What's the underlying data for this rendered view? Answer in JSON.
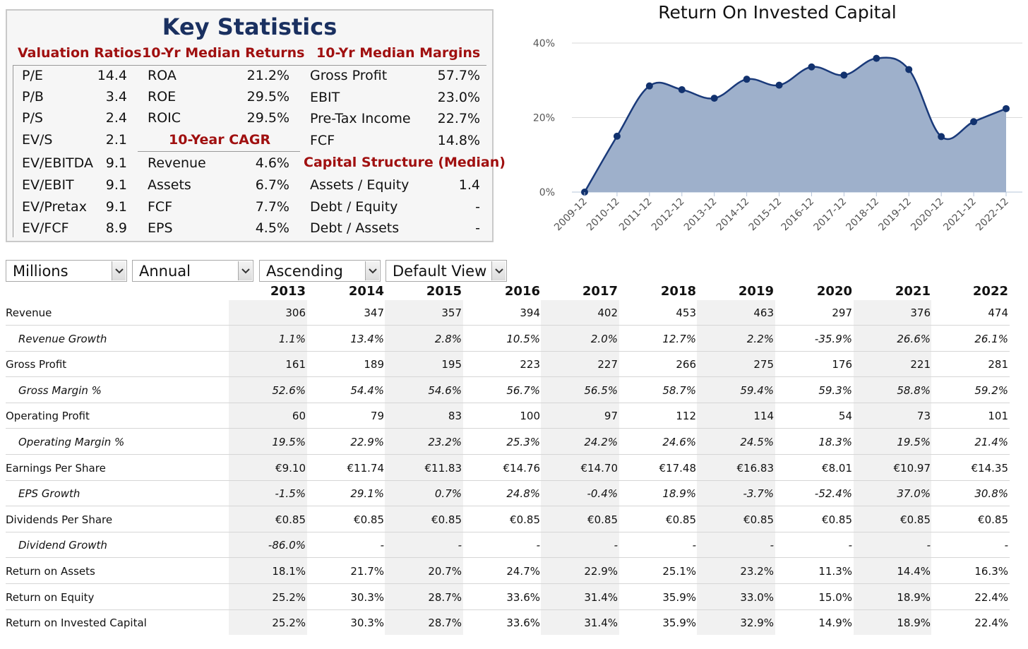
{
  "key_stats": {
    "title": "Key Statistics",
    "valuation": {
      "header": "Valuation Ratios",
      "rows": [
        {
          "label": "P/E",
          "value": "14.4"
        },
        {
          "label": "P/B",
          "value": "3.4"
        },
        {
          "label": "P/S",
          "value": "2.4"
        },
        {
          "label": "EV/S",
          "value": "2.1"
        },
        {
          "label": "EV/EBITDA",
          "value": "9.1"
        },
        {
          "label": "EV/EBIT",
          "value": "9.1"
        },
        {
          "label": "EV/Pretax",
          "value": "9.1"
        },
        {
          "label": "EV/FCF",
          "value": "8.9"
        }
      ]
    },
    "returns": {
      "header": "10-Yr Median Returns",
      "rows": [
        {
          "label": "ROA",
          "value": "21.2%"
        },
        {
          "label": "ROE",
          "value": "29.5%"
        },
        {
          "label": "ROIC",
          "value": "29.5%"
        }
      ]
    },
    "cagr": {
      "header": "10-Year CAGR",
      "rows": [
        {
          "label": "Revenue",
          "value": "4.6%"
        },
        {
          "label": "Assets",
          "value": "6.7%"
        },
        {
          "label": "FCF",
          "value": "7.7%"
        },
        {
          "label": "EPS",
          "value": "4.5%"
        }
      ]
    },
    "margins": {
      "header": "10-Yr Median Margins",
      "rows": [
        {
          "label": "Gross Profit",
          "value": "57.7%"
        },
        {
          "label": "EBIT",
          "value": "23.0%"
        },
        {
          "label": "Pre-Tax Income",
          "value": "22.7%"
        },
        {
          "label": "FCF",
          "value": "14.8%"
        }
      ]
    },
    "capital": {
      "header": "Capital Structure (Median)",
      "rows": [
        {
          "label": "Assets / Equity",
          "value": "1.4"
        },
        {
          "label": "Debt / Equity",
          "value": "-"
        },
        {
          "label": "Debt / Assets",
          "value": "-"
        }
      ]
    }
  },
  "chart_data": {
    "type": "area",
    "title": "Return On Invested Capital",
    "categories": [
      "2009-12",
      "2010-12",
      "2011-12",
      "2012-12",
      "2013-12",
      "2014-12",
      "2015-12",
      "2016-12",
      "2017-12",
      "2018-12",
      "2019-12",
      "2020-12",
      "2021-12",
      "2022-12"
    ],
    "series": [
      {
        "values": [
          0,
          15.0,
          28.5,
          27.5,
          25.2,
          30.3,
          28.7,
          33.6,
          31.4,
          35.9,
          32.9,
          14.9,
          18.9,
          22.4
        ]
      }
    ],
    "ylim": [
      0,
      40
    ],
    "yticks": [
      "0%",
      "20%",
      "40%"
    ],
    "ytick_values": [
      0,
      20,
      40
    ],
    "grid": true,
    "colors": {
      "fill": "#9eb0cb",
      "line": "#1a3a7a",
      "point": "#12326e"
    }
  },
  "controls": {
    "units": "Millions",
    "period": "Annual",
    "order": "Ascending",
    "view": "Default View"
  },
  "table": {
    "years": [
      "2013",
      "2014",
      "2015",
      "2016",
      "2017",
      "2018",
      "2019",
      "2020",
      "2021",
      "2022"
    ],
    "rows": [
      {
        "label": "Revenue",
        "sub": false,
        "values": [
          "306",
          "347",
          "357",
          "394",
          "402",
          "453",
          "463",
          "297",
          "376",
          "474"
        ]
      },
      {
        "label": "Revenue Growth",
        "sub": true,
        "values": [
          "1.1%",
          "13.4%",
          "2.8%",
          "10.5%",
          "2.0%",
          "12.7%",
          "2.2%",
          "-35.9%",
          "26.6%",
          "26.1%"
        ]
      },
      {
        "label": "Gross Profit",
        "sub": false,
        "values": [
          "161",
          "189",
          "195",
          "223",
          "227",
          "266",
          "275",
          "176",
          "221",
          "281"
        ]
      },
      {
        "label": "Gross Margin %",
        "sub": true,
        "values": [
          "52.6%",
          "54.4%",
          "54.6%",
          "56.7%",
          "56.5%",
          "58.7%",
          "59.4%",
          "59.3%",
          "58.8%",
          "59.2%"
        ]
      },
      {
        "label": "Operating Profit",
        "sub": false,
        "values": [
          "60",
          "79",
          "83",
          "100",
          "97",
          "112",
          "114",
          "54",
          "73",
          "101"
        ]
      },
      {
        "label": "Operating Margin %",
        "sub": true,
        "values": [
          "19.5%",
          "22.9%",
          "23.2%",
          "25.3%",
          "24.2%",
          "24.6%",
          "24.5%",
          "18.3%",
          "19.5%",
          "21.4%"
        ]
      },
      {
        "label": "Earnings Per Share",
        "sub": false,
        "values": [
          "€9.10",
          "€11.74",
          "€11.83",
          "€14.76",
          "€14.70",
          "€17.48",
          "€16.83",
          "€8.01",
          "€10.97",
          "€14.35"
        ]
      },
      {
        "label": "EPS Growth",
        "sub": true,
        "values": [
          "-1.5%",
          "29.1%",
          "0.7%",
          "24.8%",
          "-0.4%",
          "18.9%",
          "-3.7%",
          "-52.4%",
          "37.0%",
          "30.8%"
        ]
      },
      {
        "label": "Dividends Per Share",
        "sub": false,
        "values": [
          "€0.85",
          "€0.85",
          "€0.85",
          "€0.85",
          "€0.85",
          "€0.85",
          "€0.85",
          "€0.85",
          "€0.85",
          "€0.85"
        ]
      },
      {
        "label": "Dividend Growth",
        "sub": true,
        "values": [
          "-86.0%",
          "-",
          "-",
          "-",
          "-",
          "-",
          "-",
          "-",
          "-",
          "-"
        ]
      },
      {
        "label": "Return on Assets",
        "sub": false,
        "values": [
          "18.1%",
          "21.7%",
          "20.7%",
          "24.7%",
          "22.9%",
          "25.1%",
          "23.2%",
          "11.3%",
          "14.4%",
          "16.3%"
        ]
      },
      {
        "label": "Return on Equity",
        "sub": false,
        "values": [
          "25.2%",
          "30.3%",
          "28.7%",
          "33.6%",
          "31.4%",
          "35.9%",
          "33.0%",
          "15.0%",
          "18.9%",
          "22.4%"
        ]
      },
      {
        "label": "Return on Invested Capital",
        "sub": false,
        "values": [
          "25.2%",
          "30.3%",
          "28.7%",
          "33.6%",
          "31.4%",
          "35.9%",
          "32.9%",
          "14.9%",
          "18.9%",
          "22.4%"
        ]
      }
    ]
  }
}
